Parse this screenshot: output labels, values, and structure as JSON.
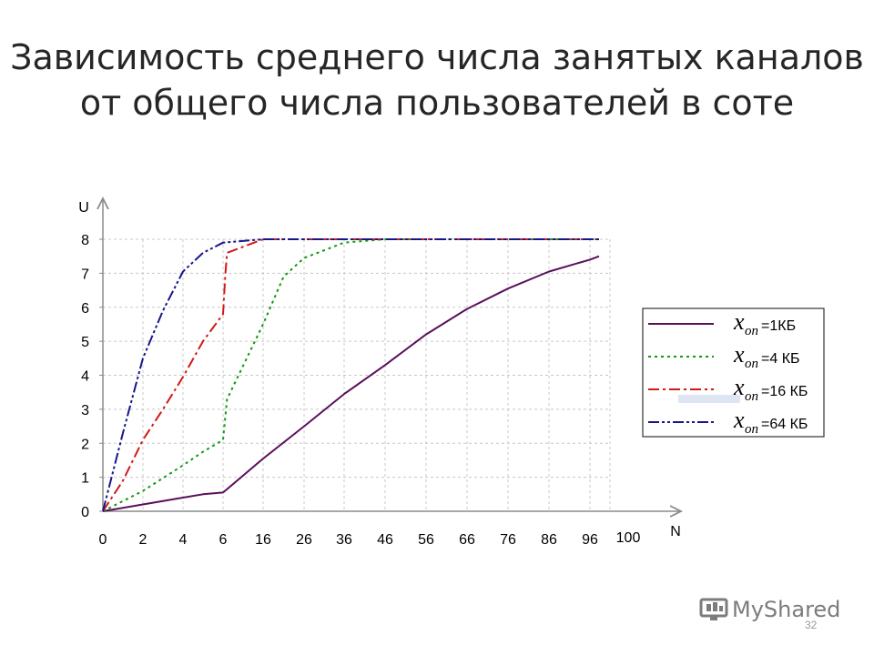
{
  "slide": {
    "title_line1": "Зависимость среднего числа занятых каналов",
    "title_line2": "от общего числа пользователей в соте",
    "page_number": "32"
  },
  "watermark": {
    "text": "MyShared",
    "icon": "myshared-logo-icon"
  },
  "colors": {
    "s1": "#5a0f5a",
    "s4": "#0e9a0e",
    "s16": "#d21818",
    "s64": "#16168a",
    "grid": "#c8c8c8",
    "axis": "#8a8a8a"
  },
  "chart_data": {
    "type": "line",
    "title": "",
    "xlabel": "N",
    "ylabel": "U",
    "x_ticks": [
      "0",
      "2",
      "4",
      "6",
      "16",
      "26",
      "36",
      "46",
      "56",
      "66",
      "76",
      "86",
      "96",
      "100"
    ],
    "ylim": [
      0,
      8
    ],
    "y_ticks": [
      "0",
      "1",
      "2",
      "3",
      "4",
      "5",
      "6",
      "7",
      "8"
    ],
    "grid": true,
    "legend_position": "right",
    "legend_symbol": "x",
    "legend_subscript": "on",
    "series": [
      {
        "name": "=1КБ",
        "color_key": "s1",
        "dash": "solid",
        "points": [
          [
            0,
            0
          ],
          [
            2,
            0.2
          ],
          [
            4,
            0.4
          ],
          [
            5,
            0.5
          ],
          [
            6,
            0.55
          ],
          [
            16,
            1.55
          ],
          [
            26,
            2.5
          ],
          [
            36,
            3.45
          ],
          [
            46,
            4.3
          ],
          [
            56,
            5.2
          ],
          [
            66,
            5.95
          ],
          [
            76,
            6.55
          ],
          [
            86,
            7.05
          ],
          [
            96,
            7.4
          ],
          [
            98,
            7.5
          ]
        ]
      },
      {
        "name": "=4 КБ",
        "color_key": "s4",
        "dash": "dotted",
        "points": [
          [
            0,
            0
          ],
          [
            2,
            0.6
          ],
          [
            4,
            1.35
          ],
          [
            5,
            1.75
          ],
          [
            6,
            2.1
          ],
          [
            7,
            3.3
          ],
          [
            16,
            5.5
          ],
          [
            21,
            6.9
          ],
          [
            26,
            7.45
          ],
          [
            36,
            7.9
          ],
          [
            46,
            8
          ],
          [
            98,
            8
          ]
        ]
      },
      {
        "name": "=16 КБ",
        "color_key": "s16",
        "dash": "dashdot",
        "points": [
          [
            0,
            0
          ],
          [
            1,
            0.9
          ],
          [
            2,
            2.1
          ],
          [
            3,
            3.0
          ],
          [
            4,
            3.95
          ],
          [
            5,
            5.0
          ],
          [
            6,
            5.8
          ],
          [
            6.6,
            7.0
          ],
          [
            7,
            7.6
          ],
          [
            16,
            8
          ],
          [
            98,
            8
          ]
        ]
      },
      {
        "name": "=64 КБ",
        "color_key": "s64",
        "dash": "dashdotdot",
        "points": [
          [
            0,
            0
          ],
          [
            1,
            2.3
          ],
          [
            2,
            4.5
          ],
          [
            3,
            5.9
          ],
          [
            4,
            7.05
          ],
          [
            5,
            7.6
          ],
          [
            6,
            7.9
          ],
          [
            16,
            8
          ],
          [
            98,
            8
          ]
        ]
      }
    ]
  }
}
